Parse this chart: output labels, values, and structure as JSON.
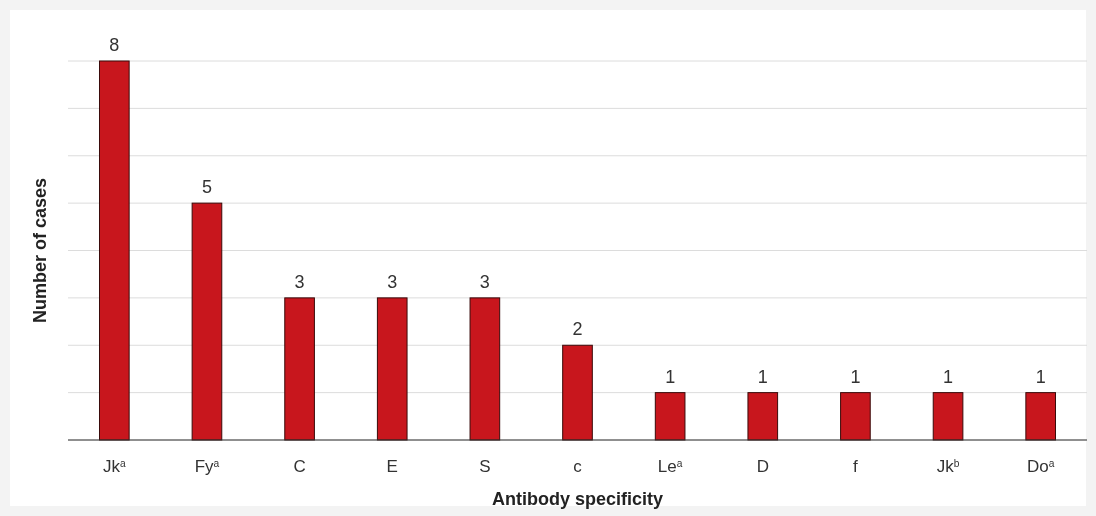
{
  "chart_data": {
    "type": "bar",
    "xlabel": "Antibody specificity",
    "ylabel": "Number of cases",
    "categories": [
      "Jk$^{a}$",
      "Fy$^{a}$",
      "C",
      "E",
      "S",
      "c",
      "Le$^{a}$",
      "D",
      "f",
      "Jk$^{b}$",
      "Do$^{a}$"
    ],
    "values": [
      8,
      5,
      3,
      3,
      3,
      2,
      1,
      1,
      1,
      1,
      1
    ],
    "color": "#c8161d",
    "data_labels": true,
    "ylim": [
      0,
      8
    ],
    "yticks": [
      {
        "value": 0,
        "label": null
      },
      {
        "value": 1,
        "label": null
      },
      {
        "value": 2,
        "label": null
      },
      {
        "value": 3,
        "label": null
      },
      {
        "value": 4,
        "label": null
      },
      {
        "value": 5,
        "label": null
      },
      {
        "value": 6,
        "label": null
      },
      {
        "value": 7,
        "label": null
      },
      {
        "value": 8,
        "label": null
      }
    ],
    "grid": "y",
    "tick_labels": "x"
  }
}
